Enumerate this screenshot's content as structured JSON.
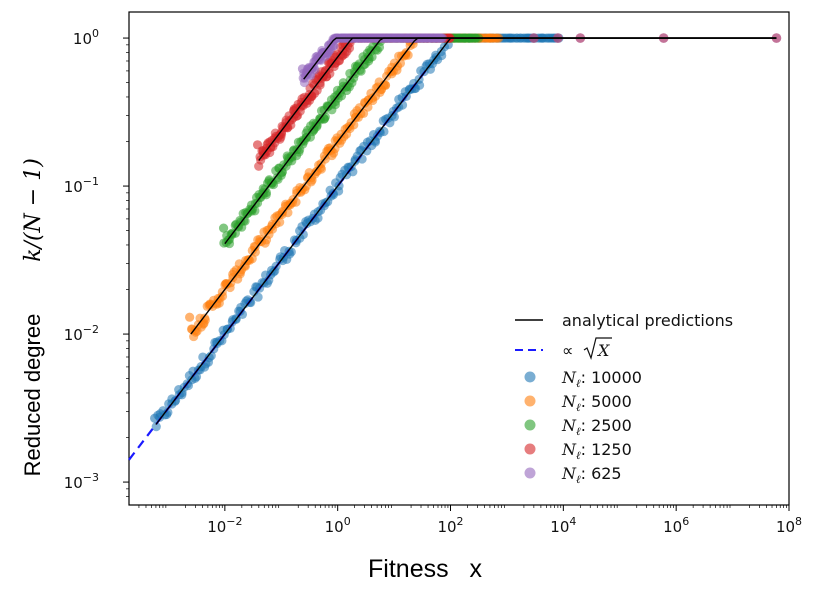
{
  "chart_data": {
    "type": "scatter",
    "title": "",
    "xlabel": "Fitness   x",
    "ylabel_text": "Reduced degree",
    "ylabel_math": "k/(N − 1)",
    "xscale": "log",
    "yscale": "log",
    "xlim": [
      0.0002,
      100000000
    ],
    "ylim": [
      0.0007,
      1.5
    ],
    "grid": false,
    "legend_position": "lower-right",
    "x_ticks": [
      {
        "value": 0.01,
        "base": "10",
        "exp": "−2"
      },
      {
        "value": 1,
        "base": "10",
        "exp": "0"
      },
      {
        "value": 100,
        "base": "10",
        "exp": "2"
      },
      {
        "value": 10000,
        "base": "10",
        "exp": "4"
      },
      {
        "value": 1000000,
        "base": "10",
        "exp": "6"
      },
      {
        "value": 100000000,
        "base": "10",
        "exp": "8"
      }
    ],
    "y_ticks": [
      {
        "value": 0.001,
        "base": "10",
        "exp": "−3"
      },
      {
        "value": 0.01,
        "base": "10",
        "exp": "−2"
      },
      {
        "value": 0.1,
        "base": "10",
        "exp": "−1"
      },
      {
        "value": 1,
        "base": "10",
        "exp": "0"
      }
    ],
    "legend": {
      "analytical_label": "analytical predictions",
      "sqrt_label_prefix": "∝ ",
      "sqrt_label_var": "X",
      "series_label_symbol": "N",
      "series_label_sub": "ℓ",
      "series_label_sep": ": "
    },
    "reference_line": {
      "name": "sqrt_reference",
      "color": "#1a1aff",
      "x_start": 0.0002,
      "x_end": 40,
      "coefficient": 0.1,
      "exponent": 0.5
    },
    "series": [
      {
        "name": "10000",
        "color": "#1f77b4",
        "x_min": 0.0006,
        "x_knee": 100,
        "x_max": 60000000,
        "y_min_obs": 0.0027
      },
      {
        "name": "5000",
        "color": "#ff7f0e",
        "x_min": 0.0025,
        "x_knee": 25,
        "x_max": 700,
        "y_min_obs": 0.013
      },
      {
        "name": "2500",
        "color": "#2ca02c",
        "x_min": 0.01,
        "x_knee": 6,
        "x_max": 300,
        "y_min_obs": 0.052
      },
      {
        "name": "1250",
        "color": "#d62728",
        "x_min": 0.04,
        "x_knee": 1.8,
        "x_max": 100,
        "y_min_obs": 0.19
      },
      {
        "name": "625",
        "color": "#9467bd",
        "x_min": 0.25,
        "x_knee": 0.9,
        "x_max": 40000,
        "y_min_obs": 0.62
      }
    ],
    "tail_points": [
      {
        "x": 3000,
        "y": 1.0,
        "series": "625"
      },
      {
        "x": 8000,
        "y": 1.0,
        "series": "625"
      },
      {
        "x": 20000,
        "y": 1.0,
        "series": "625"
      },
      {
        "x": 600000,
        "y": 1.0,
        "series": "625"
      },
      {
        "x": 60000000,
        "y": 1.0,
        "series": "625"
      }
    ],
    "analytical_x_end": 60000000
  }
}
